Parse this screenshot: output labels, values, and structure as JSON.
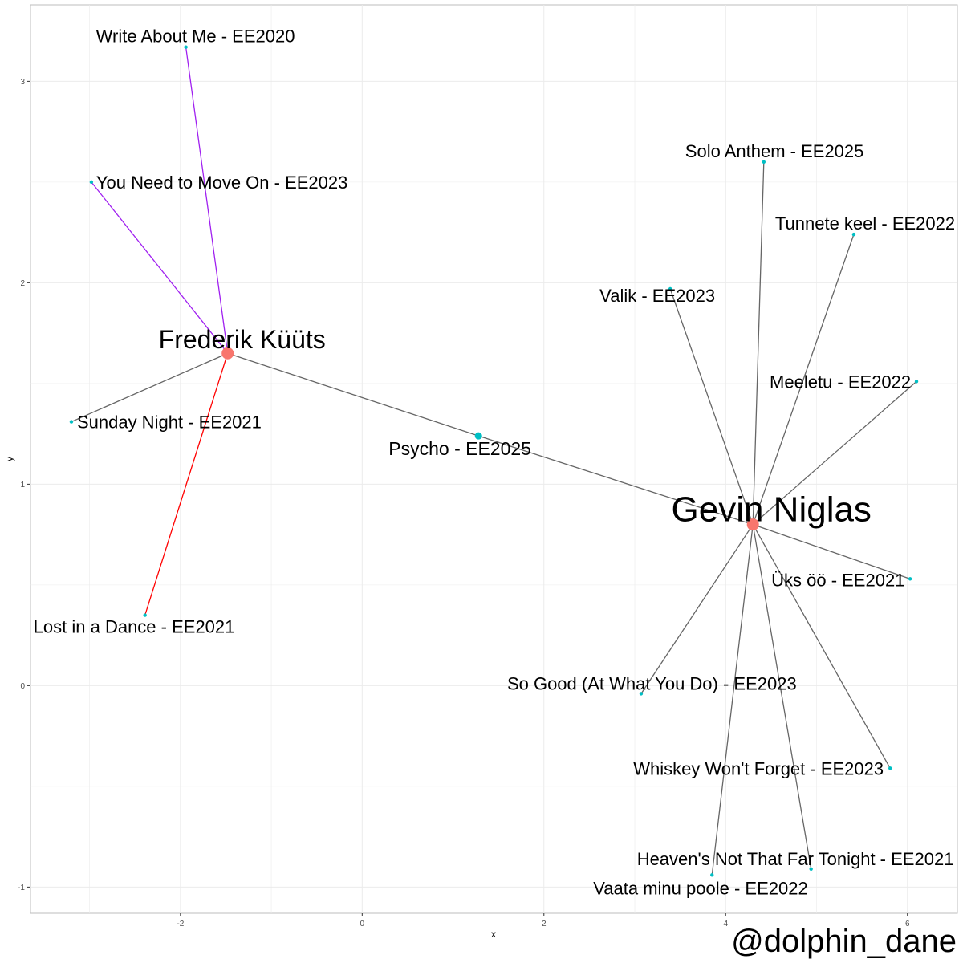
{
  "chart_data": {
    "type": "network",
    "xlabel": "x",
    "ylabel": "y",
    "xlim": [
      -3.65,
      6.55
    ],
    "ylim": [
      -1.13,
      3.38
    ],
    "x_ticks": [
      -2,
      0,
      2,
      4,
      6
    ],
    "y_ticks": [
      -1,
      0,
      1,
      2,
      3
    ],
    "grid": true,
    "colors": {
      "artist_node": "#F8766D",
      "song_node": "#00BFC4",
      "edge_default": "#666666",
      "edge_purple": "#A020F0",
      "edge_red": "#FF0000"
    },
    "nodes": [
      {
        "id": "frederik",
        "label": "Frederik Küüts",
        "kind": "artist",
        "x": -1.48,
        "y": 1.65
      },
      {
        "id": "gevin",
        "label": "Gevin Niglas",
        "kind": "artist",
        "x": 4.3,
        "y": 0.8
      },
      {
        "id": "psycho",
        "label": "Psycho - EE2025",
        "kind": "shared_song",
        "x": 1.28,
        "y": 1.24
      },
      {
        "id": "write",
        "label": "Write About Me - EE2020",
        "kind": "song",
        "x": -1.94,
        "y": 3.17
      },
      {
        "id": "moveon",
        "label": "You Need to Move On - EE2023",
        "kind": "song",
        "x": -2.98,
        "y": 2.5
      },
      {
        "id": "sunday",
        "label": "Sunday Night - EE2021",
        "kind": "song",
        "x": -3.2,
        "y": 1.31
      },
      {
        "id": "dance",
        "label": "Lost in a Dance - EE2021",
        "kind": "song",
        "x": -2.39,
        "y": 0.35
      },
      {
        "id": "solo",
        "label": "Solo Anthem - EE2025",
        "kind": "song",
        "x": 4.42,
        "y": 2.6
      },
      {
        "id": "tunnete",
        "label": "Tunnete keel - EE2022",
        "kind": "song",
        "x": 5.41,
        "y": 2.24
      },
      {
        "id": "valik",
        "label": "Valik - EE2023",
        "kind": "song",
        "x": 3.39,
        "y": 1.97
      },
      {
        "id": "meeletu",
        "label": "Meeletu - EE2022",
        "kind": "song",
        "x": 6.1,
        "y": 1.51
      },
      {
        "id": "uksoo",
        "label": "Üks öö - EE2021",
        "kind": "song",
        "x": 6.03,
        "y": 0.53
      },
      {
        "id": "sogood",
        "label": "So Good (At What You Do) - EE2023",
        "kind": "song",
        "x": 3.07,
        "y": -0.04
      },
      {
        "id": "whiskey",
        "label": "Whiskey Won't Forget - EE2023",
        "kind": "song",
        "x": 5.81,
        "y": -0.41
      },
      {
        "id": "heaven",
        "label": "Heaven's Not That Far Tonight - EE2021",
        "kind": "song",
        "x": 4.94,
        "y": -0.91
      },
      {
        "id": "vaata",
        "label": "Vaata minu poole - EE2022",
        "kind": "song",
        "x": 3.85,
        "y": -0.94
      }
    ],
    "edges": [
      {
        "from": "frederik",
        "to": "write",
        "color": "purple"
      },
      {
        "from": "frederik",
        "to": "moveon",
        "color": "purple"
      },
      {
        "from": "frederik",
        "to": "sunday",
        "color": "default"
      },
      {
        "from": "frederik",
        "to": "dance",
        "color": "red"
      },
      {
        "from": "frederik",
        "to": "psycho",
        "color": "default"
      },
      {
        "from": "psycho",
        "to": "gevin",
        "color": "default"
      },
      {
        "from": "gevin",
        "to": "solo",
        "color": "default"
      },
      {
        "from": "gevin",
        "to": "tunnete",
        "color": "default"
      },
      {
        "from": "gevin",
        "to": "valik",
        "color": "default"
      },
      {
        "from": "gevin",
        "to": "meeletu",
        "color": "default"
      },
      {
        "from": "gevin",
        "to": "uksoo",
        "color": "default"
      },
      {
        "from": "gevin",
        "to": "sogood",
        "color": "default"
      },
      {
        "from": "gevin",
        "to": "whiskey",
        "color": "default"
      },
      {
        "from": "gevin",
        "to": "heaven",
        "color": "default"
      },
      {
        "from": "gevin",
        "to": "vaata",
        "color": "default"
      }
    ]
  },
  "watermark": "@dolphin_dane"
}
